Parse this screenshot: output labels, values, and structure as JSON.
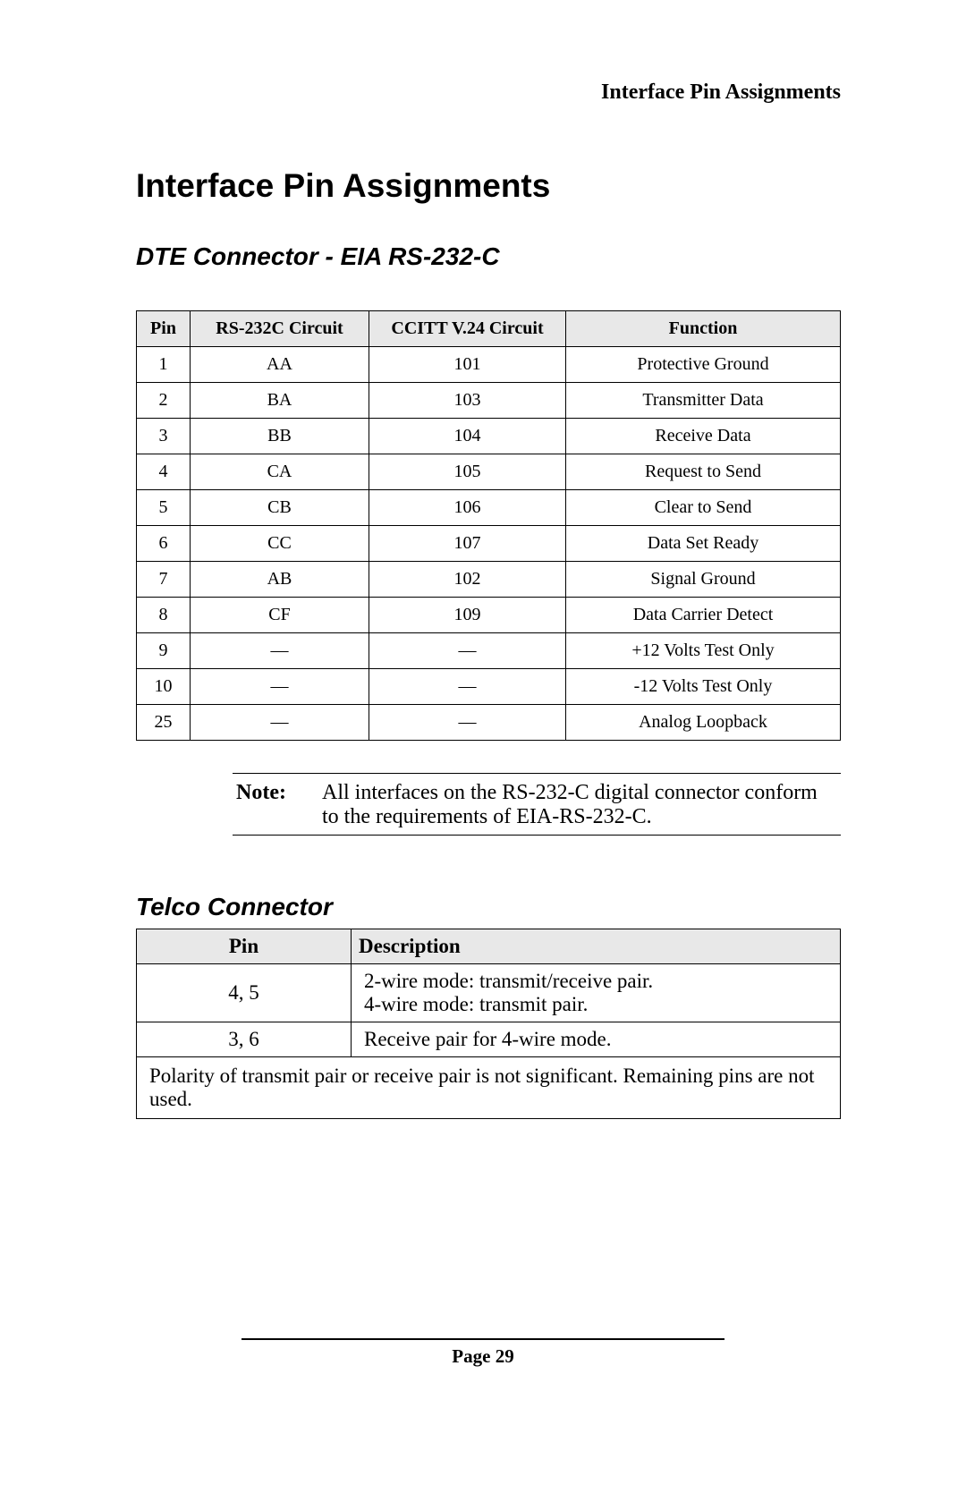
{
  "header": {
    "running_title": "Interface Pin Assignments"
  },
  "title": "Interface Pin Assignments",
  "dte": {
    "heading": "DTE Connector - EIA RS-232-C",
    "columns": [
      "Pin",
      "RS-232C Circuit",
      "CCITT V.24 Circuit",
      "Function"
    ],
    "rows": [
      [
        "1",
        "AA",
        "101",
        "Protective Ground"
      ],
      [
        "2",
        "BA",
        "103",
        "Transmitter Data"
      ],
      [
        "3",
        "BB",
        "104",
        "Receive Data"
      ],
      [
        "4",
        "CA",
        "105",
        "Request to Send"
      ],
      [
        "5",
        "CB",
        "106",
        "Clear to Send"
      ],
      [
        "6",
        "CC",
        "107",
        "Data Set Ready"
      ],
      [
        "7",
        "AB",
        "102",
        "Signal Ground"
      ],
      [
        "8",
        "CF",
        "109",
        "Data Carrier Detect"
      ],
      [
        "9",
        "—",
        "—",
        "+12 Volts Test Only"
      ],
      [
        "10",
        "—",
        "—",
        "-12 Volts Test Only"
      ],
      [
        "25",
        "—",
        "—",
        "Analog Loopback"
      ]
    ]
  },
  "note": {
    "label": "Note:",
    "text": "All interfaces on the RS-232-C digital connector conform to the requirements of EIA-RS-232-C."
  },
  "telco": {
    "heading": "Telco Connector",
    "columns": [
      "Pin",
      "Description"
    ],
    "rows": [
      [
        "4, 5",
        "2-wire mode: transmit/receive pair.\n4-wire mode: transmit pair."
      ],
      [
        "3, 6",
        "Receive pair for 4-wire mode."
      ]
    ],
    "footer": "Polarity of transmit pair or receive pair is not significant. Remaining pins are not used."
  },
  "page_footer": {
    "label": "Page 29"
  }
}
